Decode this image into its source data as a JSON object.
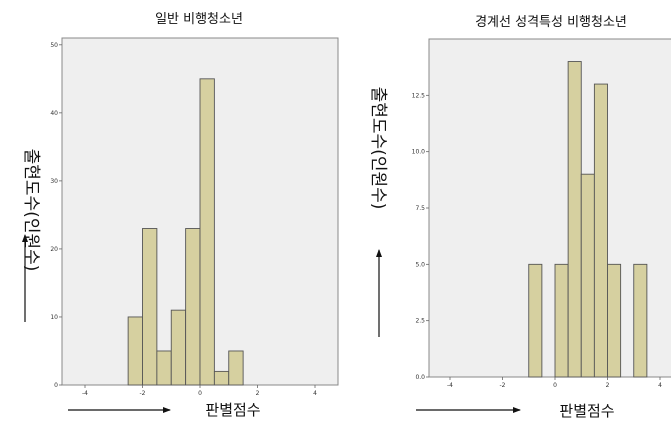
{
  "colors": {
    "bar_fill": "#d6d0a0",
    "bar_stroke": "#555555",
    "plot_bg": "#efefef",
    "frame": "#888888"
  },
  "chart_data": [
    {
      "type": "bar",
      "title": "일반 비행청소년",
      "xlabel": "판별점수",
      "ylabel": "출현도수(인원수)",
      "bin_width": 0.5,
      "bins": [
        {
          "x0": -2.5,
          "x1": -2.0,
          "count": 10
        },
        {
          "x0": -2.0,
          "x1": -1.5,
          "count": 23
        },
        {
          "x0": -1.5,
          "x1": -1.0,
          "count": 5
        },
        {
          "x0": -1.0,
          "x1": -0.5,
          "count": 11
        },
        {
          "x0": -0.5,
          "x1": 0.0,
          "count": 23
        },
        {
          "x0": 0.0,
          "x1": 0.5,
          "count": 45
        },
        {
          "x0": 0.5,
          "x1": 1.0,
          "count": 2
        },
        {
          "x0": 1.0,
          "x1": 1.5,
          "count": 5
        }
      ],
      "xlim": [
        -4.8,
        4.8
      ],
      "ylim": [
        0,
        51
      ],
      "xticks": [
        {
          "value": -4,
          "label": "-4"
        },
        {
          "value": -2,
          "label": "-2"
        },
        {
          "value": 0,
          "label": "0"
        },
        {
          "value": 2,
          "label": "2"
        },
        {
          "value": 4,
          "label": "4"
        }
      ],
      "yticks": [
        {
          "value": 0,
          "label": "0"
        },
        {
          "value": 10,
          "label": "10"
        },
        {
          "value": 20,
          "label": "20"
        },
        {
          "value": 30,
          "label": "30"
        },
        {
          "value": 40,
          "label": "40"
        },
        {
          "value": 50,
          "label": "50"
        }
      ],
      "grid": false
    },
    {
      "type": "bar",
      "title": "경계선 성격특성 비행청소년",
      "xlabel": "판별점수",
      "ylabel": "출현도수(인원수)",
      "bin_width": 0.5,
      "bins": [
        {
          "x0": -1.0,
          "x1": -0.5,
          "count": 5
        },
        {
          "x0": 0.0,
          "x1": 0.5,
          "count": 5
        },
        {
          "x0": 0.5,
          "x1": 1.0,
          "count": 14
        },
        {
          "x0": 1.0,
          "x1": 1.5,
          "count": 9
        },
        {
          "x0": 1.5,
          "x1": 2.0,
          "count": 13
        },
        {
          "x0": 2.0,
          "x1": 2.5,
          "count": 5
        },
        {
          "x0": 3.0,
          "x1": 3.5,
          "count": 5
        }
      ],
      "xlim": [
        -4.8,
        4.8
      ],
      "ylim": [
        0,
        15
      ],
      "xticks": [
        {
          "value": -4,
          "label": "-4"
        },
        {
          "value": -2,
          "label": "-2"
        },
        {
          "value": 0,
          "label": "0"
        },
        {
          "value": 2,
          "label": "2"
        },
        {
          "value": 4,
          "label": "4"
        }
      ],
      "yticks": [
        {
          "value": 0,
          "label": "0.0"
        },
        {
          "value": 2.5,
          "label": "2.5"
        },
        {
          "value": 5,
          "label": "5.0"
        },
        {
          "value": 7.5,
          "label": "7.5"
        },
        {
          "value": 10,
          "label": "10.0"
        },
        {
          "value": 12.5,
          "label": "12.5"
        }
      ],
      "grid": false
    }
  ]
}
